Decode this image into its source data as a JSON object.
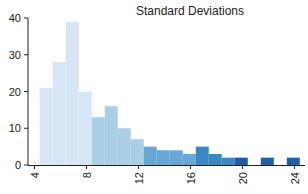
{
  "chart_data": {
    "type": "histogram",
    "title": "Standard Deviations",
    "bins": [
      4.4,
      5.4,
      6.4,
      7.4,
      8.4,
      9.4,
      10.4,
      11.4,
      12.4,
      13.4,
      14.4,
      15.4,
      16.4,
      17.4,
      18.4,
      19.4,
      20.4,
      21.4,
      22.4,
      23.4,
      24.4
    ],
    "values": [
      21,
      28,
      39,
      20,
      13,
      16,
      10,
      7,
      5,
      4,
      4,
      3,
      5,
      3,
      2,
      2,
      0,
      2,
      0,
      2
    ],
    "colors": [
      "#d6e6f5",
      "#d6e6f5",
      "#d6e6f5",
      "#d6e6f5",
      "#aacfe5",
      "#aacfe5",
      "#aacfe5",
      "#aacfe5",
      "#66a8d3",
      "#66a8d3",
      "#66a8d3",
      "#66a8d3",
      "#3a88c3",
      "#3a88c3",
      "#3a88c3",
      "#1f5fa6",
      "#1f5fa6",
      "#1f5fa6",
      "#1f5fa6",
      "#1f5fa6"
    ],
    "xlim": [
      3.5,
      24.8
    ],
    "ylim": [
      0,
      40
    ],
    "xticks": [
      4,
      8,
      12,
      16,
      20,
      24
    ],
    "yticks": [
      0,
      10,
      20,
      30,
      40
    ],
    "grid": false
  }
}
